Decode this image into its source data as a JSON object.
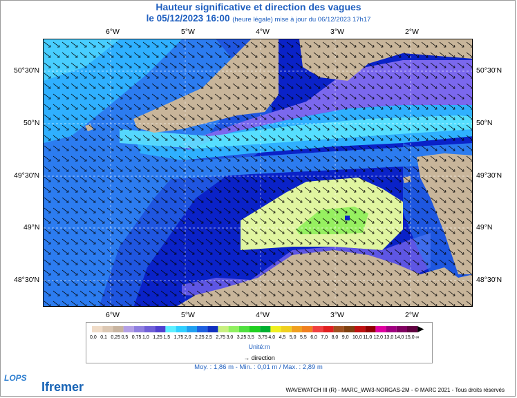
{
  "title": "Hauteur significative et direction des vagues",
  "subtitle": {
    "datetime": "le 05/12/2023 16:00",
    "note": "(heure légale) mise à jour du 06/12/2023 17h17"
  },
  "map": {
    "lon_labels": [
      "6°W",
      "5°W",
      "4°W",
      "3°W",
      "2°W"
    ],
    "lat_labels": [
      "50°30'N",
      "50°N",
      "49°30'N",
      "49°N",
      "48°30'N"
    ],
    "colors": {
      "land": "#c8b59a",
      "deep_blue": "#0a22c8",
      "medium_blue": "#1f56e0",
      "blue": "#2c7cf0",
      "light_blue": "#2fb0ff",
      "cyan": "#5de8ff",
      "purple": "#7b68ee",
      "lavender": "#b7a8f2",
      "yellow_green": "#e0f5a0",
      "green": "#96f060"
    }
  },
  "legend": {
    "labels": [
      "0,0",
      "0,1",
      "0,25",
      "0,5",
      "0,75",
      "1,0",
      "1,25",
      "1,5",
      "1,75",
      "2,0",
      "2,25",
      "2,5",
      "2,75",
      "3,0",
      "3,25",
      "3,5",
      "3,75",
      "4,0",
      "4,5",
      "5,0",
      "5,5",
      "6,0",
      "7,0",
      "8,0",
      "9,0",
      "10,0",
      "11,0",
      "12,0",
      "13,0",
      "14,0",
      "15,0",
      "∞"
    ],
    "colors": [
      "#f0dcc8",
      "#dcc8b4",
      "#c8b4a0",
      "#b4a0e6",
      "#9080e0",
      "#7060d8",
      "#5040d0",
      "#5df0ff",
      "#30d0ff",
      "#20a0f0",
      "#1e60e0",
      "#1030c0",
      "#c8f080",
      "#90f060",
      "#50e040",
      "#20d020",
      "#00b030",
      "#f0f020",
      "#f0d020",
      "#f0a020",
      "#f08020",
      "#f04040",
      "#e02020",
      "#a05020",
      "#804010",
      "#c01010",
      "#900000",
      "#e000a0",
      "#a00080",
      "#800060",
      "#600040"
    ],
    "unit": "Unité:m",
    "direction": "direction"
  },
  "stats": "Moy. : 1,86 m   -   Min. : 0,01 m / Max. : 2,89 m",
  "credit": "WAVEWATCH III (R) - MARC_WW3-NORGAS-2M - © MARC 2021 - Tous droits réservés",
  "logos": {
    "lops": "LOPS",
    "ifremer": "Ifremer"
  }
}
